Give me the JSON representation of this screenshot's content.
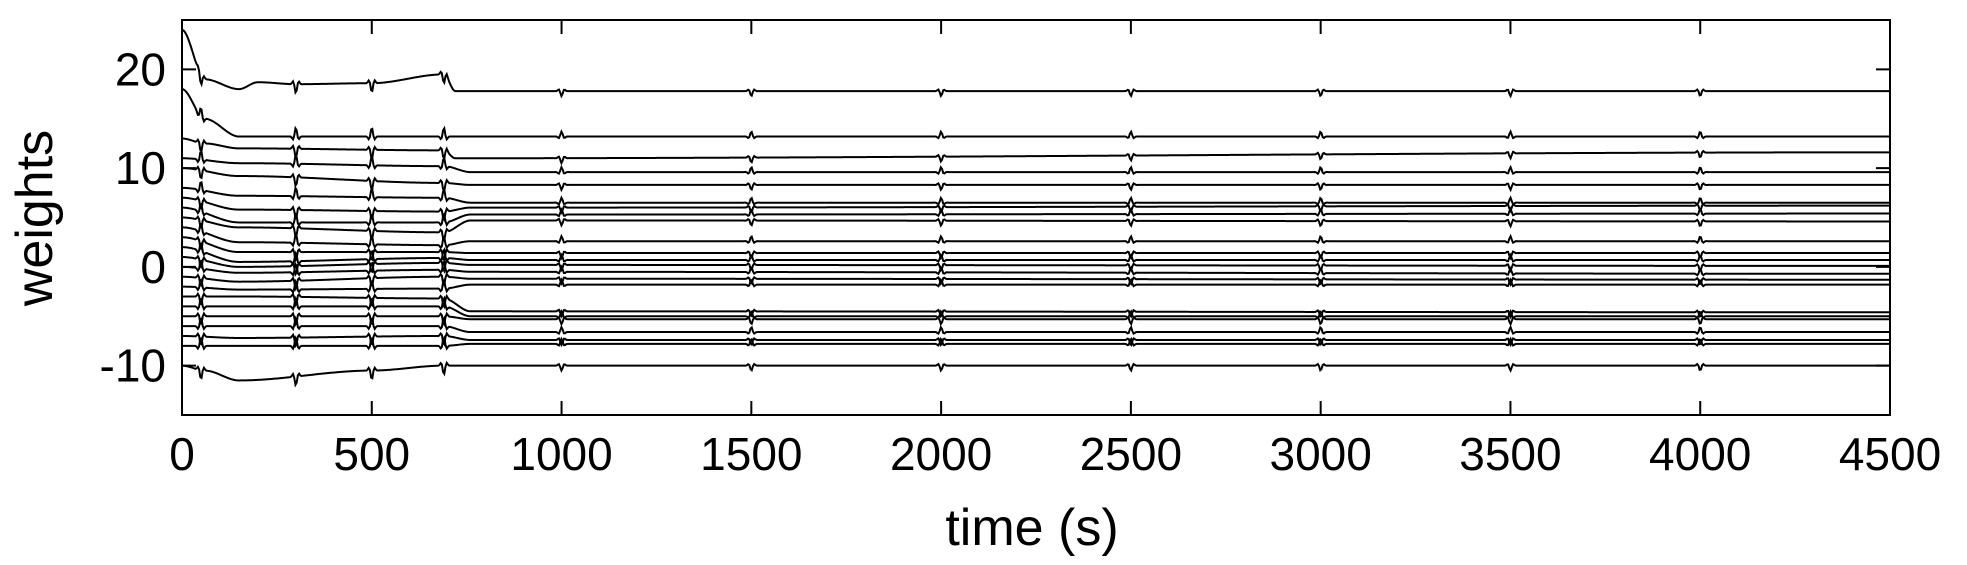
{
  "chart_data": {
    "type": "line",
    "title": "",
    "xlabel": "time (s)",
    "ylabel": "weights",
    "xlim": [
      0,
      4500
    ],
    "ylim": [
      -15,
      25
    ],
    "xticks": [
      0,
      500,
      1000,
      1500,
      2000,
      2500,
      3000,
      3500,
      4000,
      4500
    ],
    "yticks": [
      -10,
      0,
      10,
      20
    ],
    "xtick_labels": [
      "0",
      "500",
      "1000",
      "1500",
      "2000",
      "2500",
      "3000",
      "3500",
      "4000",
      "4500"
    ],
    "ytick_labels": [
      "-10",
      "0",
      "10",
      "20"
    ],
    "grid": false,
    "legend": "none",
    "line_color": "#000000",
    "event_times": [
      50,
      300,
      500,
      690,
      1000,
      1500,
      2000,
      2500,
      3000,
      3500,
      4000
    ],
    "series": [
      {
        "values": [
          [
            0,
            24
          ],
          [
            60,
            19
          ],
          [
            150,
            18
          ],
          [
            200,
            18.7
          ],
          [
            300,
            18.5
          ],
          [
            500,
            18.6
          ],
          [
            690,
            19.5
          ],
          [
            720,
            17.8
          ],
          [
            4500,
            17.8
          ]
        ]
      },
      {
        "values": [
          [
            0,
            18
          ],
          [
            60,
            15
          ],
          [
            150,
            13.2
          ],
          [
            4500,
            13.2
          ]
        ]
      },
      {
        "values": [
          [
            0,
            13
          ],
          [
            60,
            12.5
          ],
          [
            150,
            12.0
          ],
          [
            690,
            11.8
          ],
          [
            720,
            11.0
          ],
          [
            4500,
            11.6
          ]
        ]
      },
      {
        "values": [
          [
            0,
            11
          ],
          [
            150,
            10.5
          ],
          [
            690,
            10.2
          ],
          [
            760,
            9.6
          ],
          [
            4500,
            9.6
          ]
        ]
      },
      {
        "values": [
          [
            0,
            10
          ],
          [
            150,
            9.2
          ],
          [
            690,
            8.5
          ],
          [
            760,
            8.3
          ],
          [
            4500,
            8.3
          ]
        ]
      },
      {
        "values": [
          [
            0,
            8
          ],
          [
            150,
            7.2
          ],
          [
            690,
            7.0
          ],
          [
            760,
            6.5
          ],
          [
            4500,
            6.5
          ]
        ]
      },
      {
        "values": [
          [
            0,
            7
          ],
          [
            150,
            5.8
          ],
          [
            690,
            5.6
          ],
          [
            760,
            6.0
          ],
          [
            4500,
            6.2
          ]
        ]
      },
      {
        "values": [
          [
            0,
            6
          ],
          [
            150,
            4.5
          ],
          [
            690,
            4.5
          ],
          [
            760,
            5.3
          ],
          [
            4500,
            5.4
          ]
        ]
      },
      {
        "values": [
          [
            0,
            5
          ],
          [
            150,
            4.0
          ],
          [
            690,
            3.5
          ],
          [
            760,
            4.7
          ],
          [
            4500,
            4.6
          ]
        ]
      },
      {
        "values": [
          [
            0,
            4
          ],
          [
            150,
            2.5
          ],
          [
            690,
            2.2
          ],
          [
            760,
            2.6
          ],
          [
            4500,
            2.6
          ]
        ]
      },
      {
        "values": [
          [
            0,
            3
          ],
          [
            150,
            1.5
          ],
          [
            690,
            1.5
          ],
          [
            760,
            1.4
          ],
          [
            4500,
            1.4
          ]
        ]
      },
      {
        "values": [
          [
            0,
            2
          ],
          [
            150,
            0.5
          ],
          [
            690,
            0.9
          ],
          [
            760,
            0.7
          ],
          [
            4500,
            0.7
          ]
        ]
      },
      {
        "values": [
          [
            0,
            1
          ],
          [
            150,
            0.0
          ],
          [
            690,
            0.4
          ],
          [
            760,
            0.2
          ],
          [
            4500,
            0.1
          ]
        ]
      },
      {
        "values": [
          [
            0,
            0
          ],
          [
            150,
            -0.6
          ],
          [
            690,
            -0.3
          ],
          [
            760,
            -0.5
          ],
          [
            4500,
            -0.7
          ]
        ]
      },
      {
        "values": [
          [
            0,
            -1
          ],
          [
            150,
            -1.5
          ],
          [
            690,
            -1.0
          ],
          [
            760,
            -1.2
          ],
          [
            4500,
            -1.3
          ]
        ]
      },
      {
        "values": [
          [
            0,
            -2
          ],
          [
            150,
            -2.3
          ],
          [
            690,
            -2.2
          ],
          [
            760,
            -1.8
          ],
          [
            4500,
            -1.8
          ]
        ]
      },
      {
        "values": [
          [
            0,
            -3
          ],
          [
            150,
            -3.0
          ],
          [
            690,
            -3.2
          ],
          [
            760,
            -4.5
          ],
          [
            4500,
            -4.6
          ]
        ]
      },
      {
        "values": [
          [
            0,
            -4
          ],
          [
            150,
            -4.0
          ],
          [
            690,
            -4.0
          ],
          [
            760,
            -5.0
          ],
          [
            4500,
            -5.0
          ]
        ]
      },
      {
        "values": [
          [
            0,
            -5
          ],
          [
            150,
            -5.0
          ],
          [
            690,
            -5.0
          ],
          [
            760,
            -5.3
          ],
          [
            4500,
            -5.3
          ]
        ]
      },
      {
        "values": [
          [
            0,
            -6
          ],
          [
            150,
            -6.0
          ],
          [
            690,
            -6.0
          ],
          [
            760,
            -6.6
          ],
          [
            4500,
            -6.6
          ]
        ]
      },
      {
        "values": [
          [
            0,
            -7
          ],
          [
            150,
            -7.2
          ],
          [
            690,
            -7.0
          ],
          [
            760,
            -7.4
          ],
          [
            4500,
            -7.4
          ]
        ]
      },
      {
        "values": [
          [
            0,
            -8
          ],
          [
            150,
            -8.0
          ],
          [
            690,
            -8.0
          ],
          [
            760,
            -7.8
          ],
          [
            4500,
            -7.8
          ]
        ]
      },
      {
        "values": [
          [
            0,
            -10
          ],
          [
            60,
            -10.5
          ],
          [
            150,
            -11.5
          ],
          [
            500,
            -10.5
          ],
          [
            690,
            -10.0
          ],
          [
            4500,
            -10.0
          ]
        ]
      }
    ]
  }
}
